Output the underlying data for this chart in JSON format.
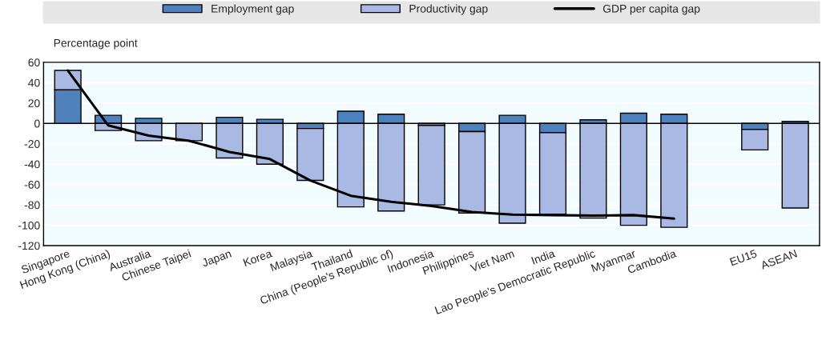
{
  "chart_data": {
    "type": "bar",
    "stacked": true,
    "ylabel": "Percentage point",
    "categories": [
      "Singapore",
      "Hong Kong (China)",
      "Australia",
      "Chinese Taipei",
      "Japan",
      "Korea",
      "Malaysia",
      "Thailand",
      "China (People's Republic of)",
      "Indonesia",
      "Philippines",
      "Viet Nam",
      "India",
      "Lao People's Democratic Republic",
      "Myanmar",
      "Cambodia",
      null,
      "EU15",
      "ASEAN"
    ],
    "series": [
      {
        "name": "Employment gap",
        "color": "#4f81bd",
        "values": [
          33,
          8,
          5,
          null,
          6,
          4,
          -5,
          12,
          9,
          -2,
          -8,
          8,
          -9,
          3.5,
          10,
          9,
          null,
          -6,
          2
        ]
      },
      {
        "name": "Productivity gap",
        "color": "#a9b9e3",
        "values": [
          19,
          -7,
          -17,
          -17,
          -34,
          -40,
          -51,
          -82,
          -86,
          -78,
          -80,
          -98,
          -80,
          -93,
          -100,
          -102,
          null,
          -20,
          -83
        ]
      },
      {
        "name": "GDP per capita gap",
        "type": "line",
        "color": "#000000",
        "values": [
          52,
          -2,
          -12,
          -17,
          -28,
          -35,
          -56,
          -71,
          -77,
          -81,
          -87,
          -89.5,
          -90,
          -90.5,
          -90,
          -93.5,
          null,
          null,
          null
        ]
      }
    ],
    "ylim": [
      -120,
      60
    ],
    "yticks": [
      -120,
      -100,
      -80,
      -60,
      -40,
      -20,
      0,
      20,
      40,
      60
    ],
    "grid": "y",
    "legend": "top",
    "line_style": "solid",
    "marker": "none"
  }
}
